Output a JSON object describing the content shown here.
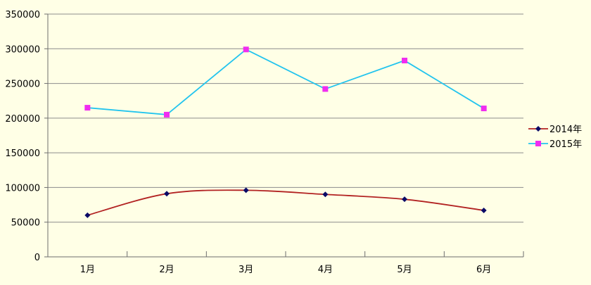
{
  "chart_data": {
    "type": "line",
    "categories": [
      "1月",
      "2月",
      "3月",
      "4月",
      "5月",
      "6月"
    ],
    "ylim": [
      0,
      350000
    ],
    "yticks": [
      "0",
      "50000",
      "100000",
      "150000",
      "200000",
      "250000",
      "300000",
      "350000"
    ],
    "grid": true,
    "legend_position": "right",
    "series": [
      {
        "name": "2014年",
        "color": "#B22222",
        "marker_color": "#0A0A66",
        "marker": "diamond",
        "smooth": true,
        "values": [
          60000,
          91000,
          96000,
          90000,
          83000,
          67000
        ]
      },
      {
        "name": "2015年",
        "color": "#22C4EE",
        "marker_color": "#F02CF0",
        "marker": "square",
        "smooth": false,
        "values": [
          215000,
          205000,
          299000,
          242000,
          283000,
          214000
        ]
      }
    ]
  }
}
